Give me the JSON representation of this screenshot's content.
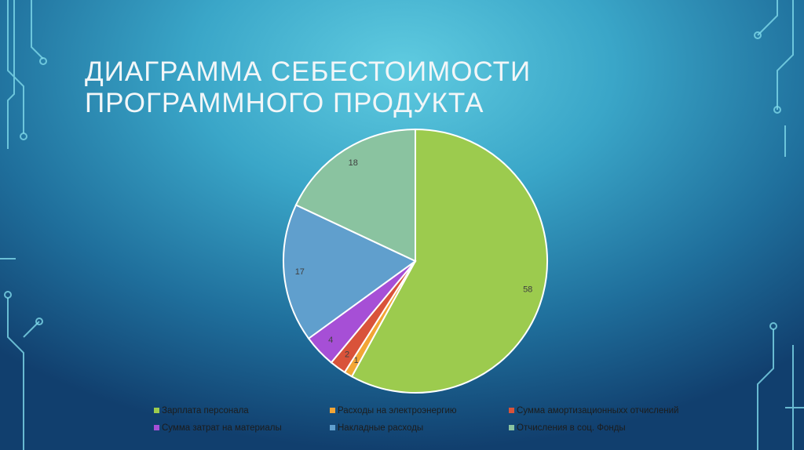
{
  "chart_data": {
    "type": "pie",
    "title": "ДИАГРАММА СЕБЕСТОИМОСТИ ПРОГРАММНОГО ПРОДУКТА",
    "categories": [
      "Зарплата персонала",
      "Расходы на электроэнергию",
      "Сумма амортизационныхх отчислений",
      "Сумма затрат на материалы",
      "Накладные расходы",
      "Отчисления в соц. Фонды"
    ],
    "values": [
      58,
      1,
      2,
      4,
      17,
      18
    ],
    "colors": [
      "#9ccb4e",
      "#f2a535",
      "#d9533a",
      "#a64fd6",
      "#609fcd",
      "#8ac3a0"
    ]
  }
}
